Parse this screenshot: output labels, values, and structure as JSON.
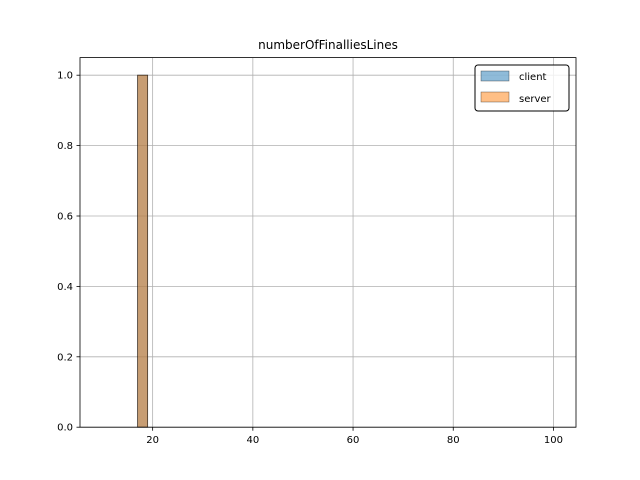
{
  "chart_data": {
    "type": "bar",
    "title": "numberOfFinalliesLines",
    "xlabel": "",
    "ylabel": "",
    "xlim": [
      5.5,
      104.5
    ],
    "ylim": [
      0,
      1.05
    ],
    "xticks": [
      20,
      40,
      60,
      80,
      100
    ],
    "yticks": [
      0.0,
      0.2,
      0.4,
      0.6,
      0.8,
      1.0
    ],
    "xtick_labels": [
      "20",
      "40",
      "60",
      "80",
      "100"
    ],
    "ytick_labels": [
      "0.0",
      "0.2",
      "0.4",
      "0.6",
      "0.8",
      "1.0"
    ],
    "grid": true,
    "legend_position": "top-right",
    "series": [
      {
        "name": "client",
        "color": "#1f77b4",
        "alpha": 0.5,
        "bins": [
          {
            "x0": 10,
            "x1": 17,
            "value": 0
          },
          {
            "x0": 17,
            "x1": 19,
            "value": 1
          },
          {
            "x0": 19,
            "x1": 100,
            "value": 0
          }
        ]
      },
      {
        "name": "server",
        "color": "#ff7f0e",
        "alpha": 0.5,
        "bins": [
          {
            "x0": 10,
            "x1": 17,
            "value": 0
          },
          {
            "x0": 17,
            "x1": 19,
            "value": 1
          },
          {
            "x0": 19,
            "x1": 100,
            "value": 0
          }
        ]
      }
    ]
  }
}
